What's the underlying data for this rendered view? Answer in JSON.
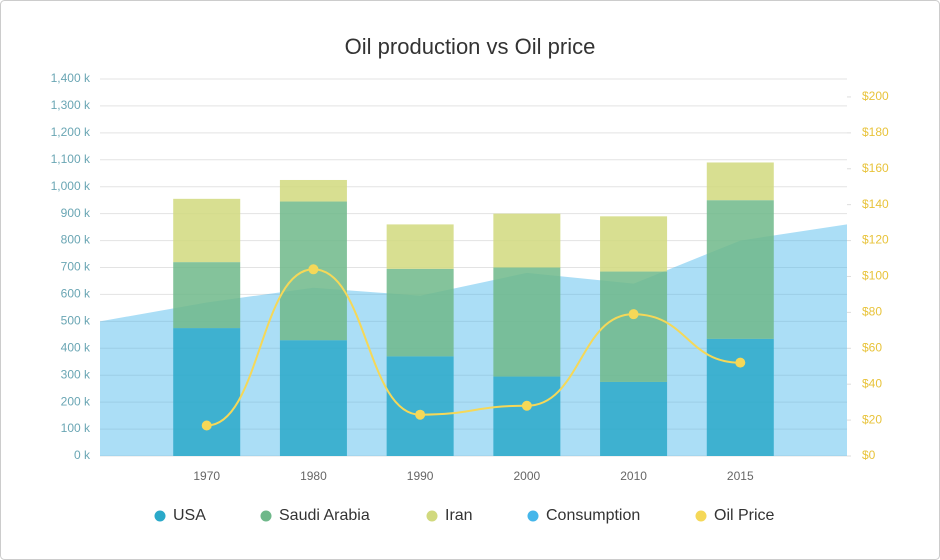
{
  "chart_data": {
    "type": "combo",
    "title": "Oil production vs Oil price",
    "categories": [
      null,
      "1970",
      "1980",
      "1990",
      "2000",
      "2010",
      "2015",
      null
    ],
    "series": [
      {
        "name": "USA",
        "type": "bar",
        "color": "#2aa9c9",
        "values": [
          null,
          475000,
          430000,
          370000,
          295000,
          275000,
          435000,
          null
        ]
      },
      {
        "name": "Saudi Arabia",
        "type": "bar",
        "color": "#6fb88a",
        "values": [
          null,
          245000,
          515000,
          325000,
          405000,
          410000,
          515000,
          null
        ]
      },
      {
        "name": "Iran",
        "type": "bar",
        "color": "#d1d97e",
        "values": [
          null,
          235000,
          80000,
          165000,
          200000,
          205000,
          140000,
          null
        ]
      },
      {
        "name": "Consumption",
        "type": "area",
        "color": "#45b6ea",
        "values": [
          500000,
          570000,
          625000,
          595000,
          680000,
          640000,
          800000,
          860000
        ]
      },
      {
        "name": "Oil Price",
        "type": "line",
        "axis": "y2",
        "color": "#f5d858",
        "values": [
          null,
          17,
          104,
          23,
          28,
          79,
          52,
          null
        ]
      }
    ],
    "ylim": [
      0,
      1400000
    ],
    "yticks": [
      {
        "value": 0,
        "label": "0 k"
      },
      {
        "value": 100000,
        "label": "100 k"
      },
      {
        "value": 200000,
        "label": "200 k"
      },
      {
        "value": 300000,
        "label": "300 k"
      },
      {
        "value": 400000,
        "label": "400 k"
      },
      {
        "value": 500000,
        "label": "500 k"
      },
      {
        "value": 600000,
        "label": "600 k"
      },
      {
        "value": 700000,
        "label": "700 k"
      },
      {
        "value": 800000,
        "label": "800 k"
      },
      {
        "value": 900000,
        "label": "900 k"
      },
      {
        "value": 1000000,
        "label": "1,000 k"
      },
      {
        "value": 1100000,
        "label": "1,100 k"
      },
      {
        "value": 1200000,
        "label": "1,200 k"
      },
      {
        "value": 1300000,
        "label": "1,300 k"
      },
      {
        "value": 1400000,
        "label": "1,400 k"
      }
    ],
    "y2lim": [
      0,
      210
    ],
    "y2ticks": [
      {
        "value": 0,
        "label": "$0"
      },
      {
        "value": 20,
        "label": "$20"
      },
      {
        "value": 40,
        "label": "$40"
      },
      {
        "value": 60,
        "label": "$60"
      },
      {
        "value": 80,
        "label": "$80"
      },
      {
        "value": 100,
        "label": "$100"
      },
      {
        "value": 120,
        "label": "$120"
      },
      {
        "value": 140,
        "label": "$140"
      },
      {
        "value": 160,
        "label": "$160"
      },
      {
        "value": 180,
        "label": "$180"
      },
      {
        "value": 200,
        "label": "$200"
      }
    ],
    "grid": true,
    "legend": "bottom"
  }
}
